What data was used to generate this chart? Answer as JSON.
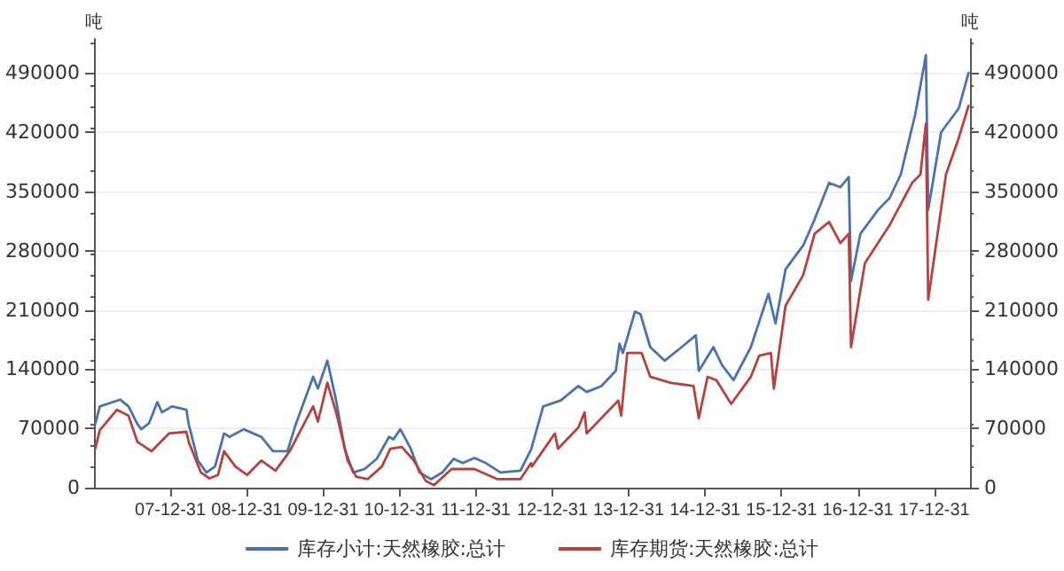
{
  "chart_data": {
    "type": "line",
    "ylabel": "吨",
    "y2label": "吨",
    "xlim": [
      "2006-12-31",
      "2018-06-20"
    ],
    "xticks": [
      {
        "value": "2007-12-31",
        "label": "07-12-31"
      },
      {
        "value": "2008-12-31",
        "label": "08-12-31"
      },
      {
        "value": "2009-12-31",
        "label": "09-12-31"
      },
      {
        "value": "2010-12-31",
        "label": "10-12-31"
      },
      {
        "value": "2011-12-31",
        "label": "11-12-31"
      },
      {
        "value": "2012-12-31",
        "label": "12-12-31"
      },
      {
        "value": "2013-12-31",
        "label": "13-12-31"
      },
      {
        "value": "2014-12-31",
        "label": "14-12-31"
      },
      {
        "value": "2015-12-31",
        "label": "15-12-31"
      },
      {
        "value": "2016-12-31",
        "label": "16-12-31"
      },
      {
        "value": "2017-12-31",
        "label": "17-12-31"
      }
    ],
    "ylim": [
      0,
      530000
    ],
    "yticks": [
      0,
      70000,
      140000,
      210000,
      280000,
      350000,
      420000,
      490000
    ],
    "y2lim": [
      0,
      530000
    ],
    "y2ticks": [
      0,
      70000,
      140000,
      210000,
      280000,
      350000,
      420000,
      490000
    ],
    "grid": "y",
    "legend": "bottom",
    "marker": "none",
    "line_style": "solid",
    "series": [
      {
        "name": "库存小计:天然橡胶:总计",
        "color": "#4a72b0",
        "x": [
          "2007-01-06",
          "2007-01-28",
          "2007-05-05",
          "2007-06-14",
          "2007-07-27",
          "2007-08-14",
          "2007-09-20",
          "2007-10-30",
          "2007-11-21",
          "2008-01-08",
          "2008-03-17",
          "2008-03-28",
          "2008-05-11",
          "2008-06-21",
          "2008-08-01",
          "2008-09-13",
          "2008-10-09",
          "2008-12-16",
          "2009-03-10",
          "2009-05-05",
          "2009-07-13",
          "2009-08-22",
          "2009-11-13",
          "2009-12-06",
          "2010-01-20",
          "2010-03-03",
          "2010-04-13",
          "2010-05-23",
          "2010-07-17",
          "2010-09-13",
          "2010-11-11",
          "2010-12-02",
          "2011-01-04",
          "2011-02-23",
          "2011-04-05",
          "2011-05-31",
          "2011-07-24",
          "2011-09-16",
          "2011-10-29",
          "2011-12-24",
          "2012-02-17",
          "2012-04-27",
          "2012-07-31",
          "2012-09-20",
          "2012-11-17",
          "2013-02-09",
          "2013-05-04",
          "2013-06-13",
          "2013-08-22",
          "2013-10-30",
          "2013-11-17",
          "2013-12-03",
          "2014-01-30",
          "2014-02-25",
          "2014-04-13",
          "2014-06-21",
          "2014-09-10",
          "2014-11-17",
          "2014-12-01",
          "2015-02-09",
          "2015-03-22",
          "2015-05-16",
          "2015-08-07",
          "2015-10-30",
          "2015-12-03",
          "2016-01-20",
          "2016-04-13",
          "2016-06-07",
          "2016-08-15",
          "2016-10-08",
          "2016-11-17",
          "2016-11-28",
          "2017-01-12",
          "2017-04-06",
          "2017-05-31",
          "2017-07-24",
          "2017-10-01",
          "2017-11-21",
          "2017-12-02",
          "2018-02-02",
          "2018-04-27",
          "2018-06-13"
        ],
        "values": [
          75000,
          96000,
          104000,
          96000,
          75000,
          69000,
          76000,
          101000,
          89000,
          96000,
          92000,
          75000,
          32000,
          18000,
          25000,
          64000,
          60000,
          69000,
          60000,
          43000,
          43000,
          75000,
          131000,
          117000,
          150000,
          103000,
          46000,
          18000,
          22000,
          34000,
          60000,
          57000,
          69000,
          46000,
          18000,
          10000,
          18000,
          34000,
          29000,
          35000,
          29000,
          18000,
          20000,
          45000,
          96000,
          103000,
          120000,
          113000,
          120000,
          138000,
          170000,
          159000,
          208000,
          205000,
          166000,
          150000,
          166000,
          180000,
          138000,
          166000,
          145000,
          127000,
          166000,
          229000,
          194000,
          258000,
          286000,
          317000,
          360000,
          355000,
          367000,
          244000,
          300000,
          328000,
          342000,
          370000,
          441000,
          511000,
          328000,
          420000,
          448000,
          490000
        ]
      },
      {
        "name": "库存期货:天然橡胶:总计",
        "color": "#b8413f",
        "x": [
          "2007-01-06",
          "2007-01-28",
          "2007-04-20",
          "2007-06-14",
          "2007-07-27",
          "2007-10-02",
          "2007-12-24",
          "2008-03-17",
          "2008-03-28",
          "2008-05-25",
          "2008-07-05",
          "2008-08-15",
          "2008-09-13",
          "2008-11-06",
          "2009-01-01",
          "2009-03-10",
          "2009-05-17",
          "2009-07-24",
          "2009-11-13",
          "2009-12-06",
          "2010-01-20",
          "2010-03-03",
          "2010-04-27",
          "2010-06-07",
          "2010-07-31",
          "2010-10-08",
          "2010-11-17",
          "2011-01-11",
          "2011-03-10",
          "2011-05-05",
          "2011-06-14",
          "2011-09-06",
          "2011-12-24",
          "2012-04-13",
          "2012-07-31",
          "2012-09-20",
          "2012-09-24",
          "2013-01-12",
          "2013-01-27",
          "2013-05-04",
          "2013-06-03",
          "2013-06-13",
          "2013-11-11",
          "2013-11-25",
          "2013-12-24",
          "2014-03-03",
          "2014-04-13",
          "2014-07-17",
          "2014-11-06",
          "2014-12-01",
          "2015-01-12",
          "2015-02-23",
          "2015-05-05",
          "2015-08-07",
          "2015-09-16",
          "2015-11-11",
          "2015-11-25",
          "2016-01-20",
          "2016-04-13",
          "2016-06-07",
          "2016-08-15",
          "2016-10-08",
          "2016-11-17",
          "2016-11-28",
          "2017-02-02",
          "2017-05-31",
          "2017-09-16",
          "2017-10-26",
          "2017-11-21",
          "2017-12-02",
          "2018-02-25",
          "2018-04-27",
          "2018-06-13"
        ],
        "values": [
          46000,
          68000,
          92000,
          85000,
          54000,
          43000,
          64000,
          66000,
          54000,
          18000,
          11000,
          15000,
          43000,
          25000,
          15000,
          32000,
          20000,
          43000,
          96000,
          78000,
          124000,
          89000,
          32000,
          13000,
          10000,
          25000,
          46000,
          48000,
          32000,
          8000,
          3000,
          22000,
          22000,
          10000,
          10000,
          29000,
          25000,
          64000,
          46000,
          71000,
          89000,
          64000,
          103000,
          85000,
          159000,
          159000,
          131000,
          124000,
          120000,
          82000,
          131000,
          127000,
          99000,
          131000,
          156000,
          159000,
          117000,
          215000,
          251000,
          300000,
          314000,
          289000,
          300000,
          166000,
          265000,
          310000,
          360000,
          370000,
          430000,
          222000,
          370000,
          413000,
          451000
        ]
      }
    ]
  }
}
